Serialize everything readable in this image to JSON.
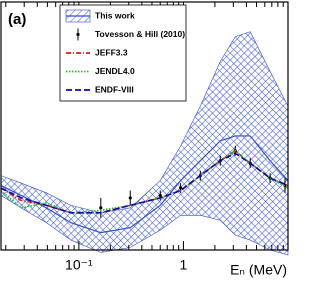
{
  "chart_data": {
    "type": "line",
    "panel_label": "(a)",
    "x_label": "Eₙ (MeV)",
    "xscale": "log",
    "xlim": [
      0.018,
      10
    ],
    "ylim": [
      0,
      1
    ],
    "xticks": [
      {
        "value": 0.1,
        "label": "10⁻¹"
      },
      {
        "value": 1,
        "label": "1"
      }
    ],
    "xminorticks": [
      0.02,
      0.03,
      0.04,
      0.05,
      0.06,
      0.07,
      0.08,
      0.09,
      0.2,
      0.3,
      0.4,
      0.5,
      0.6,
      0.7,
      0.8,
      0.9,
      2,
      3,
      4,
      5,
      6,
      7,
      8,
      9
    ],
    "series": [
      {
        "name": "This work",
        "color": "#2f4fd0",
        "style": "band",
        "x": [
          0.018,
          0.028,
          0.049,
          0.084,
          0.162,
          0.31,
          0.6,
          0.94,
          1.45,
          2.25,
          3.13,
          4.35,
          6.74,
          10
        ],
        "values": [
          0.26,
          0.22,
          0.17,
          0.11,
          0.07,
          0.09,
          0.18,
          0.28,
          0.36,
          0.44,
          0.46,
          0.46,
          0.36,
          0.28
        ],
        "errors": [
          0.04,
          0.05,
          0.06,
          0.07,
          0.08,
          0.08,
          0.1,
          0.14,
          0.22,
          0.32,
          0.4,
          0.42,
          0.36,
          0.3
        ]
      },
      {
        "name": "Tovesson & Hill (2010)",
        "color": "#000000",
        "style": "points",
        "x": [
          0.162,
          0.31,
          0.6,
          0.94,
          1.45,
          2.25,
          3.13,
          4.35,
          6.74,
          9.36
        ],
        "values": [
          0.17,
          0.21,
          0.22,
          0.25,
          0.3,
          0.36,
          0.4,
          0.35,
          0.29,
          0.26
        ],
        "errors": [
          0.04,
          0.03,
          0.02,
          0.02,
          0.02,
          0.02,
          0.02,
          0.02,
          0.02,
          0.03
        ]
      },
      {
        "name": "JEFF3.3",
        "color": "#e01818",
        "style": "dash-dot",
        "x": [
          0.018,
          0.028,
          0.049,
          0.084,
          0.162,
          0.31,
          0.6,
          0.94,
          1.45,
          2.25,
          3.13,
          4.35,
          6.74,
          10
        ],
        "values": [
          0.25,
          0.2,
          0.18,
          0.15,
          0.15,
          0.18,
          0.21,
          0.24,
          0.3,
          0.36,
          0.4,
          0.35,
          0.29,
          0.26
        ]
      },
      {
        "name": "JENDL4.0",
        "color": "#22c422",
        "style": "dotted",
        "x": [
          0.018,
          0.028,
          0.049,
          0.084,
          0.162,
          0.31,
          0.6,
          0.94,
          1.45,
          2.25,
          3.13,
          4.35,
          6.74,
          10
        ],
        "values": [
          0.24,
          0.17,
          0.19,
          0.15,
          0.16,
          0.18,
          0.21,
          0.24,
          0.3,
          0.36,
          0.4,
          0.35,
          0.29,
          0.25
        ]
      },
      {
        "name": "ENDF-VIII",
        "color": "#0a0aa8",
        "style": "dashed",
        "x": [
          0.018,
          0.028,
          0.049,
          0.084,
          0.162,
          0.31,
          0.6,
          0.94,
          1.45,
          2.25,
          3.13,
          4.35,
          6.74,
          10
        ],
        "values": [
          0.25,
          0.21,
          0.18,
          0.15,
          0.15,
          0.18,
          0.21,
          0.24,
          0.3,
          0.36,
          0.39,
          0.35,
          0.29,
          0.26
        ]
      }
    ]
  }
}
